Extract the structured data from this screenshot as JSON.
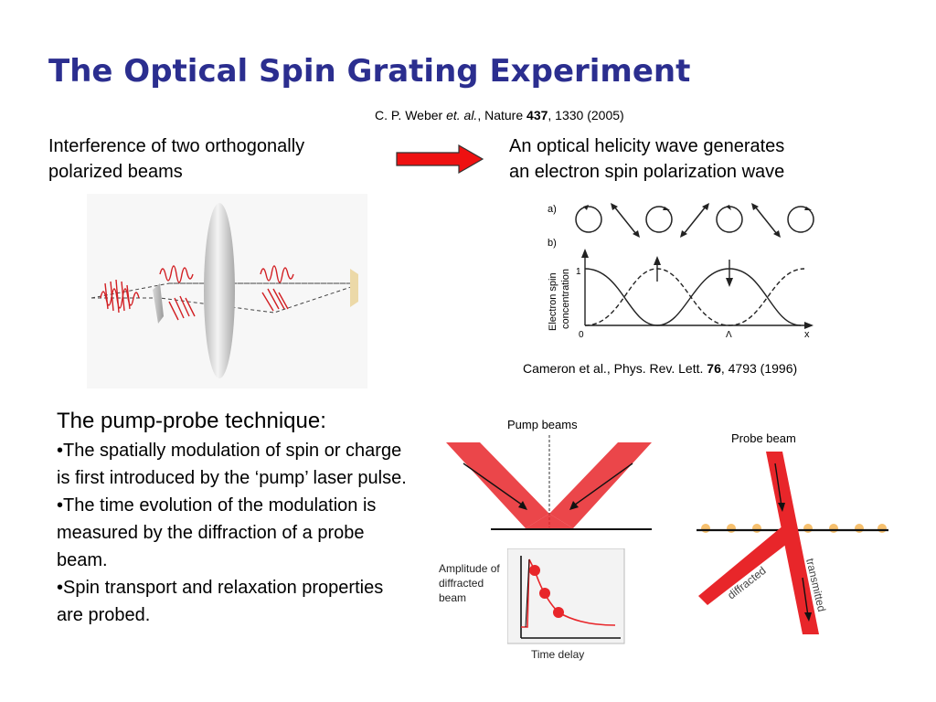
{
  "title": "The Optical Spin Grating Experiment",
  "citation": {
    "authors": "C. P. Weber",
    "etal": "et. al.",
    "journal": "Nature",
    "volume": "437",
    "rest": ", 1330 (2005)"
  },
  "left_text": {
    "line1": "Interference of two orthogonally",
    "line2": "polarized beams"
  },
  "right_text": {
    "line1": "An optical helicity wave generates",
    "line2": "an electron spin polarization wave"
  },
  "spin_figure": {
    "label_a": "a)",
    "label_b": "b)",
    "ylabel_line1": "Electron spin",
    "ylabel_line2": "concentration",
    "y_tick": "1",
    "x_origin": "0",
    "x_lambda": "Λ",
    "x_axis": "x",
    "caption_main": "Cameron et al., Phys. Rev. Lett. ",
    "caption_volume": "76",
    "caption_rest": ", 4793 (1996)"
  },
  "pump_probe": {
    "heading": "The pump-probe technique:",
    "bullets": [
      "•The spatially modulation of spin or charge is first introduced by the ‘pump’ laser pulse.",
      "•The time evolution of the modulation is measured by the diffraction of a probe beam.",
      "•Spin transport and relaxation properties are probed."
    ]
  },
  "pump_figure": {
    "label": "Pump beams"
  },
  "probe_figure": {
    "label": "Probe beam",
    "transmitted": "transmitted",
    "diffracted": "diffracted"
  },
  "decay_figure": {
    "ylabel_line1": "Amplitude of",
    "ylabel_line2": "diffracted",
    "ylabel_line3": "beam",
    "xlabel": "Time delay"
  },
  "colors": {
    "title": "#2b2e8f",
    "beam_red": "#e8262a",
    "arrow_red": "#ee1111"
  }
}
